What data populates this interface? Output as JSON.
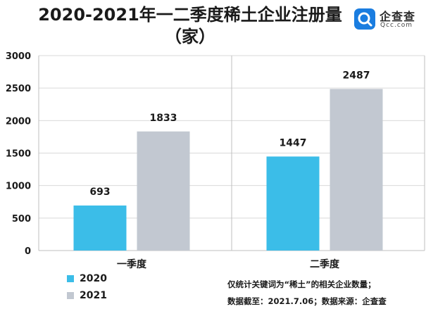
{
  "title": "2020-2021年一二季度稀土企业注册量（家）",
  "logo": {
    "cn": "企查查",
    "en": "Qcc.com",
    "icon": "magnifier-logo-icon"
  },
  "colors": {
    "2020": "#3bbde8",
    "2021": "#c2c8d1",
    "grid": "#d9d9d9",
    "axis": "#bfbfbf"
  },
  "chart_data": {
    "type": "bar",
    "categories": [
      "一季度",
      "二季度"
    ],
    "series": [
      {
        "name": "2020",
        "values": [
          693,
          1447
        ]
      },
      {
        "name": "2021",
        "values": [
          1833,
          2487
        ]
      }
    ],
    "ylim": [
      0,
      3000
    ],
    "yticks": [
      "0",
      "500",
      "1000",
      "1500",
      "2000",
      "2500",
      "3000"
    ],
    "grid": true,
    "legend": "bottom-left"
  },
  "legend": [
    {
      "label": "2020"
    },
    {
      "label": "2021"
    }
  ],
  "notes": [
    "仅统计关键词为“稀土”的相关企业数量；",
    "数据截至：2021.7.06；数据来源：企查查"
  ]
}
